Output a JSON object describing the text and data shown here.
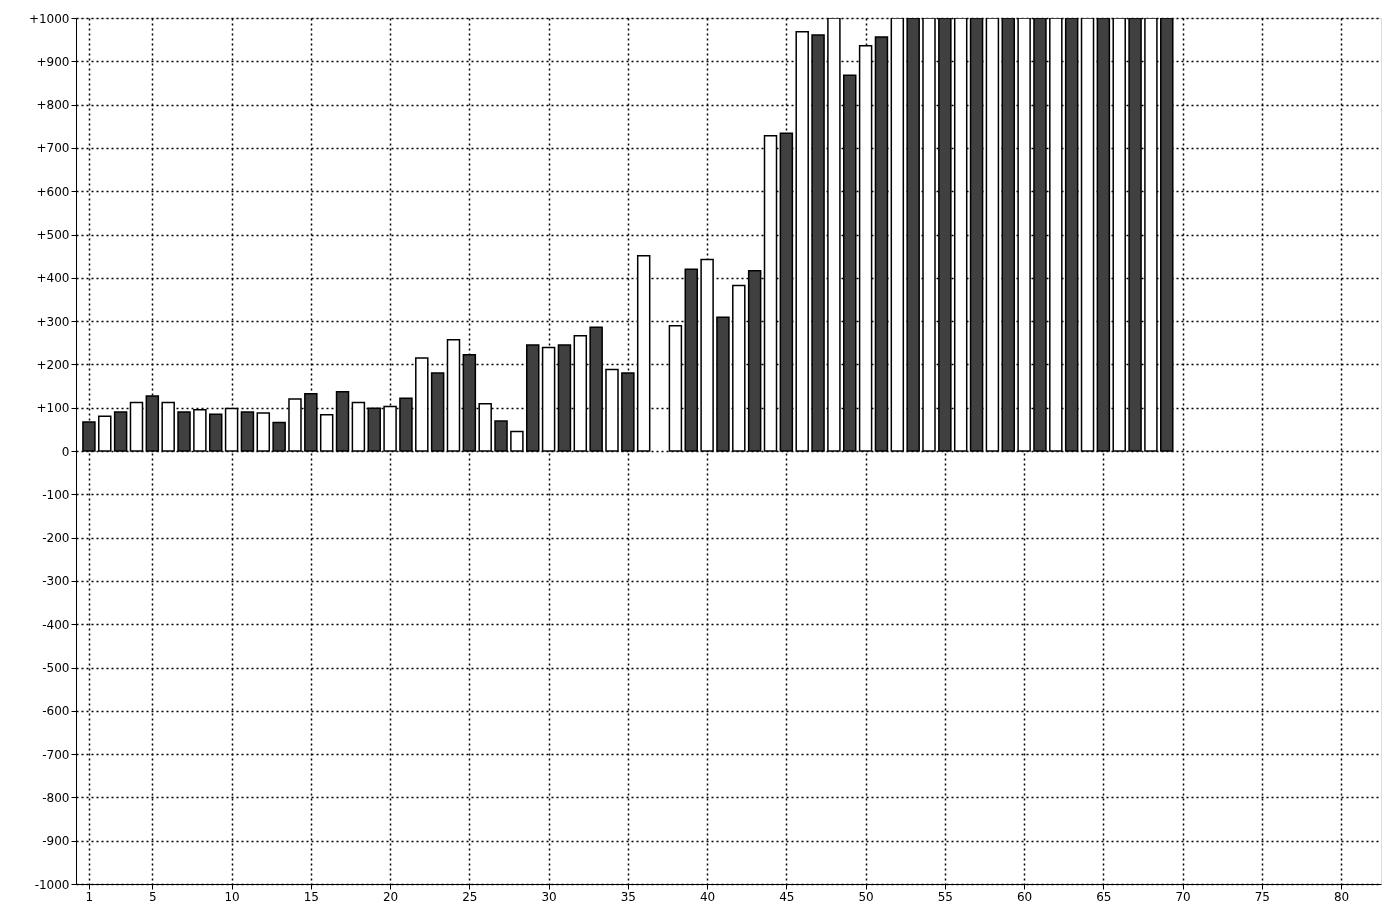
{
  "chart_data": {
    "type": "bar",
    "x": [
      1,
      2,
      3,
      4,
      5,
      6,
      7,
      8,
      9,
      10,
      11,
      12,
      13,
      14,
      15,
      16,
      17,
      18,
      19,
      20,
      21,
      22,
      23,
      24,
      25,
      26,
      27,
      28,
      29,
      30,
      31,
      32,
      33,
      34,
      35,
      36,
      37,
      38,
      39,
      40,
      41,
      42,
      43,
      44,
      45,
      46,
      47,
      48,
      49,
      50,
      51,
      52,
      53,
      54,
      55,
      56,
      57,
      58,
      59,
      60,
      61,
      62,
      63,
      64,
      65,
      66,
      67,
      68,
      69
    ],
    "values": [
      67,
      80,
      90,
      112,
      127,
      112,
      90,
      95,
      85,
      98,
      90,
      88,
      66,
      120,
      132,
      84,
      137,
      112,
      99,
      103,
      122,
      215,
      180,
      257,
      222,
      109,
      69,
      45,
      245,
      239,
      245,
      266,
      286,
      188,
      180,
      451,
      null,
      289,
      420,
      442,
      309,
      382,
      416,
      728,
      734,
      968,
      961,
      1000,
      868,
      936,
      956,
      1000,
      1000,
      1000,
      1000,
      1000,
      1000,
      1000,
      1000,
      1000,
      1000,
      1000,
      1000,
      1000,
      1000,
      1000,
      1000,
      1000,
      1000
    ],
    "colors": [
      "#404040",
      "#ffffff",
      "#404040",
      "#ffffff",
      "#404040",
      "#ffffff",
      "#404040",
      "#ffffff",
      "#404040",
      "#ffffff",
      "#404040",
      "#ffffff",
      "#404040",
      "#ffffff",
      "#404040",
      "#ffffff",
      "#404040",
      "#ffffff",
      "#404040",
      "#ffffff",
      "#404040",
      "#ffffff",
      "#404040",
      "#ffffff",
      "#404040",
      "#ffffff",
      "#404040",
      "#ffffff",
      "#404040",
      "#ffffff",
      "#404040",
      "#ffffff",
      "#404040",
      "#ffffff",
      "#404040",
      "#ffffff",
      "#404040",
      "#ffffff",
      "#404040",
      "#ffffff",
      "#404040",
      "#ffffff",
      "#404040",
      "#ffffff",
      "#404040",
      "#ffffff",
      "#404040",
      "#ffffff",
      "#404040",
      "#ffffff",
      "#404040",
      "#ffffff",
      "#404040",
      "#ffffff",
      "#404040",
      "#ffffff",
      "#404040",
      "#ffffff",
      "#404040",
      "#ffffff",
      "#404040",
      "#ffffff",
      "#404040",
      "#ffffff",
      "#404040",
      "#ffffff",
      "#404040",
      "#ffffff",
      "#404040"
    ],
    "xlim": [
      0.5,
      82.2
    ],
    "xticks": [
      1,
      5,
      10,
      15,
      20,
      25,
      30,
      35,
      40,
      45,
      50,
      55,
      60,
      65,
      70,
      75,
      80
    ],
    "ylim": [
      -1000,
      1000
    ],
    "yticks": [
      -1000,
      -900,
      -800,
      -700,
      -600,
      -500,
      -400,
      -300,
      -200,
      -100,
      0,
      {
        "value": 100,
        "label": "+100"
      },
      {
        "value": 200,
        "label": "+200"
      },
      {
        "value": 300,
        "label": "+300"
      },
      {
        "value": 400,
        "label": "+400"
      },
      {
        "value": 500,
        "label": "+500"
      },
      {
        "value": 600,
        "label": "+600"
      },
      {
        "value": 700,
        "label": "+700"
      },
      {
        "value": 800,
        "label": "+800"
      },
      {
        "value": 900,
        "label": "+900"
      },
      {
        "value": 1000,
        "label": "+1000"
      }
    ],
    "grid": true
  }
}
